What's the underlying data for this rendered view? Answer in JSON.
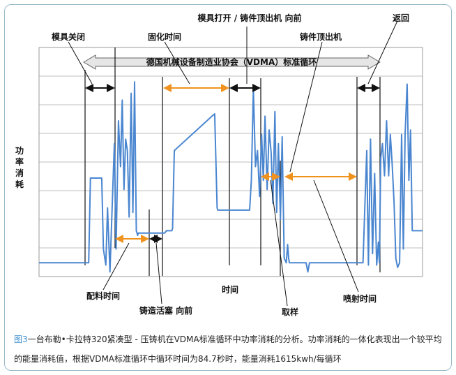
{
  "caption": {
    "figure_label": "图3",
    "text_line1": "一台布勒•卡拉特320紧凑型 - 压铸机在VDMA标准循环中功率消耗的分析。功率消耗的一体化表现出一个较平均",
    "text_line2": "的能量消耗值，根据VDMA标准循环中循环时间为84.7秒时，能量消耗1615kwh/每循环"
  },
  "colors": {
    "series": "#4a86d0",
    "phase_arrow_orange": "#f0921e",
    "phase_arrow_black": "#111111",
    "grid": "#aaaaaa",
    "band": "#e6e6e6"
  },
  "chart_data": {
    "type": "line",
    "xlabel": "时间",
    "ylabel": "功率消耗",
    "grid": true,
    "band_label": "德国机械设备制造业协会（VDMA）标准循环",
    "annotations": [
      {
        "id": "mold-close",
        "text": "模具关闭"
      },
      {
        "id": "curing",
        "text": "固化时间"
      },
      {
        "id": "open-eject",
        "text": "模具打开 / 铸件顶出机 向前"
      },
      {
        "id": "ejector",
        "text": "铸件顶出机"
      },
      {
        "id": "return",
        "text": "返回"
      },
      {
        "id": "dosing",
        "text": "配料时间"
      },
      {
        "id": "plunger",
        "text": "铸造活塞 向前"
      },
      {
        "id": "extract",
        "text": "取样"
      },
      {
        "id": "spray",
        "text": "喷射时间"
      }
    ],
    "series": [
      {
        "values": [
          [
            0,
            0.06
          ],
          [
            14.5,
            0.06
          ],
          [
            15,
            0.43
          ],
          [
            18.3,
            0.43
          ],
          [
            18.8,
            0.12
          ],
          [
            19.5,
            0.05
          ],
          [
            20,
            0.3
          ],
          [
            20.7,
            0.02
          ],
          [
            21.3,
            0.28
          ],
          [
            22,
            0.58
          ],
          [
            22.5,
            0.12
          ],
          [
            23.2,
            0.68
          ],
          [
            23.8,
            0.48
          ],
          [
            24.3,
            0.77
          ],
          [
            24.8,
            0.38
          ],
          [
            25.3,
            0.6
          ],
          [
            25.8,
            0.55
          ],
          [
            26.3,
            0.26
          ],
          [
            26.9,
            0.8
          ],
          [
            27.4,
            0.28
          ],
          [
            27.9,
            0.85
          ],
          [
            28.4,
            0.2
          ],
          [
            28.8,
            0.18
          ],
          [
            29,
            0.19
          ],
          [
            36.7,
            0.19
          ],
          [
            37.2,
            0.2
          ],
          [
            38.8,
            0.2
          ],
          [
            39,
            0.21
          ],
          [
            39.5,
            0.55
          ],
          [
            50.5,
            0.7
          ],
          [
            51.3,
            0.71
          ],
          [
            52,
            0.3
          ],
          [
            52.2,
            0.29
          ],
          [
            61.5,
            0.29
          ],
          [
            62,
            0.42
          ],
          [
            62.6,
            0.82
          ],
          [
            63.2,
            0.48
          ],
          [
            63.8,
            0.55
          ],
          [
            64.4,
            0.35
          ],
          [
            65,
            0.62
          ],
          [
            65.5,
            0.42
          ],
          [
            66,
            0.7
          ],
          [
            66.6,
            0.38
          ],
          [
            67.2,
            0.64
          ],
          [
            67.8,
            0.54
          ],
          [
            68.3,
            0.32
          ],
          [
            68.9,
            0.72
          ],
          [
            69.4,
            0.28
          ],
          [
            69.9,
            0.58
          ],
          [
            70.5,
            0.25
          ],
          [
            71,
            0.61
          ],
          [
            71.6,
            0.08
          ],
          [
            72.2,
            0.06
          ],
          [
            72.6,
            0.14
          ],
          [
            72.9,
            0.08
          ],
          [
            73.1,
            0.06
          ],
          [
            78,
            0.06
          ],
          [
            78.5,
            0.02
          ],
          [
            79,
            0.06
          ],
          [
            94,
            0.06
          ],
          [
            94.6,
            0.06
          ],
          [
            95.1,
            0.28
          ],
          [
            95.7,
            0.55
          ],
          [
            96.2,
            0.05
          ],
          [
            96.8,
            0.6
          ],
          [
            97.4,
            0.1
          ],
          [
            98,
            0.45
          ],
          [
            98.6,
            0.05
          ],
          [
            99.1,
            0.15
          ],
          [
            99.4,
            0.06
          ],
          [
            99.8,
            0.52
          ],
          [
            100.3,
            0.58
          ],
          [
            100.9,
            0.44
          ],
          [
            101.5,
            0.68
          ],
          [
            102.1,
            0.44
          ],
          [
            102.6,
            0.62
          ],
          [
            103.1,
            0.5
          ],
          [
            103.7,
            0.32
          ],
          [
            104.2,
            0.08
          ],
          [
            104.7,
            0.04
          ],
          [
            105.3,
            0.06
          ],
          [
            105.9,
            0.62
          ],
          [
            106.4,
            0.12
          ],
          [
            106.9,
            0.62
          ],
          [
            107.5,
            0.84
          ],
          [
            108,
            0.42
          ],
          [
            108.5,
            0.64
          ],
          [
            109,
            0.2
          ],
          [
            109.5,
            0.2
          ],
          [
            112,
            0.2
          ]
        ]
      }
    ],
    "xlim": [
      0,
      112
    ],
    "ylim": [
      0,
      1
    ]
  }
}
